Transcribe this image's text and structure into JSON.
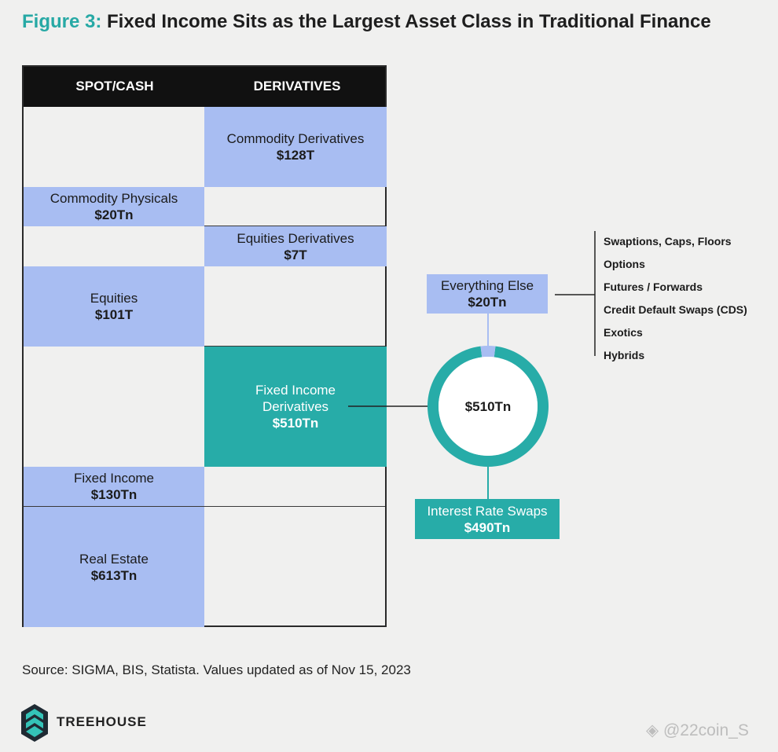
{
  "header": {
    "figure_label": "Figure 3:",
    "title": "Fixed Income Sits as the Largest Asset Class in Traditional Finance"
  },
  "table": {
    "columns": [
      "SPOT/CASH",
      "DERIVATIVES"
    ],
    "spot": [
      {
        "label": "Commodity Physicals",
        "value": "$20Tn"
      },
      {
        "label": "Equities",
        "value": "$101T"
      },
      {
        "label": "Fixed Income",
        "value": "$130Tn"
      },
      {
        "label": "Real Estate",
        "value": "$613Tn"
      }
    ],
    "derivatives": [
      {
        "label": "Commodity Derivatives",
        "value": "$128T"
      },
      {
        "label": "Equities Derivatives",
        "value": "$7T"
      },
      {
        "label_line1": "Fixed Income",
        "label_line2": "Derivatives",
        "value": "$510Tn"
      }
    ]
  },
  "breakdown": {
    "center_label": "$510Tn",
    "everything_else": {
      "label": "Everything Else",
      "value": "$20Tn"
    },
    "interest_rate_swaps": {
      "label": "Interest Rate Swaps",
      "value": "$490Tn"
    },
    "everything_else_items": [
      "Swaptions, Caps, Floors",
      "Options",
      "Futures / Forwards",
      "Credit Default Swaps (CDS)",
      "Exotics",
      "Hybrids"
    ]
  },
  "chart_data": {
    "type": "table",
    "columns": [
      "SPOT/CASH",
      "DERIVATIVES"
    ],
    "rows": [
      {
        "category": "Commodity Derivatives",
        "column": "DERIVATIVES",
        "value": "$128T"
      },
      {
        "category": "Commodity Physicals",
        "column": "SPOT/CASH",
        "value": "$20Tn"
      },
      {
        "category": "Equities Derivatives",
        "column": "DERIVATIVES",
        "value": "$7T"
      },
      {
        "category": "Equities",
        "column": "SPOT/CASH",
        "value": "$101T"
      },
      {
        "category": "Fixed Income Derivatives",
        "column": "DERIVATIVES",
        "value": "$510Tn"
      },
      {
        "category": "Fixed Income",
        "column": "SPOT/CASH",
        "value": "$130Tn"
      },
      {
        "category": "Real Estate",
        "column": "SPOT/CASH",
        "value": "$613Tn"
      }
    ],
    "donut": {
      "total": 510,
      "slices": [
        {
          "name": "Interest Rate Swaps",
          "value": 490,
          "color": "#27aca8"
        },
        {
          "name": "Everything Else",
          "value": 20,
          "color": "#a8bdf2"
        }
      ]
    }
  },
  "colors": {
    "teal": "#27aca8",
    "blue": "#a8bdf2",
    "header": "#111111"
  },
  "footer": {
    "source": "Source: SIGMA, BIS, Statista. Values updated as of Nov 15, 2023",
    "brand": "TREEHOUSE",
    "brand_icon": "treehouse-logo-icon",
    "watermark": "@22coin_S"
  }
}
